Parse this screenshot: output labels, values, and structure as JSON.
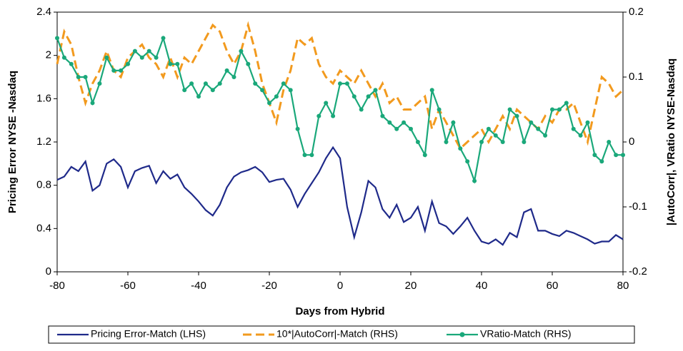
{
  "chart_data": {
    "type": "line",
    "x_label": "Days from Hybrid",
    "y_label": "Pricing Error NYSE -Nasdaq",
    "y2_label": "|AutoCorr|, VRatio NYSE-Nasdaq",
    "xlim": [
      -80,
      80
    ],
    "xticks": [
      -80,
      -60,
      -40,
      -20,
      0,
      20,
      40,
      60,
      80
    ],
    "ylim": [
      0,
      2.4
    ],
    "yticks": [
      0,
      0.4,
      0.8,
      1.2,
      1.6,
      2,
      2.4
    ],
    "y2lim": [
      -0.2,
      0.2
    ],
    "y2ticks": [
      -0.2,
      -0.1,
      0,
      0.1,
      0.2
    ],
    "x": [
      -80,
      -78,
      -76,
      -74,
      -72,
      -70,
      -68,
      -66,
      -64,
      -62,
      -60,
      -58,
      -56,
      -54,
      -52,
      -50,
      -48,
      -46,
      -44,
      -42,
      -40,
      -38,
      -36,
      -34,
      -32,
      -30,
      -28,
      -26,
      -24,
      -22,
      -20,
      -18,
      -16,
      -14,
      -12,
      -10,
      -8,
      -6,
      -4,
      -2,
      0,
      2,
      4,
      6,
      8,
      10,
      12,
      14,
      16,
      18,
      20,
      22,
      24,
      26,
      28,
      30,
      32,
      34,
      36,
      38,
      40,
      42,
      44,
      46,
      48,
      50,
      52,
      54,
      56,
      58,
      60,
      62,
      64,
      66,
      68,
      70,
      72,
      74,
      76,
      78,
      80
    ],
    "series": [
      {
        "name": "Pricing Error-Match (LHS)",
        "color": "#1f2a8a",
        "dashed": false,
        "markers": false,
        "values": [
          0.85,
          0.88,
          0.97,
          0.93,
          1.02,
          0.75,
          0.8,
          1.0,
          1.04,
          0.97,
          0.78,
          0.93,
          0.96,
          0.98,
          0.82,
          0.93,
          0.86,
          0.9,
          0.78,
          0.72,
          0.65,
          0.57,
          0.52,
          0.62,
          0.78,
          0.88,
          0.92,
          0.94,
          0.97,
          0.92,
          0.83,
          0.85,
          0.86,
          0.76,
          0.6,
          0.72,
          0.82,
          0.92,
          1.05,
          1.15,
          1.05,
          0.6,
          0.32,
          0.55,
          0.84,
          0.78,
          0.58,
          0.5,
          0.62,
          0.46,
          0.5,
          0.6,
          0.38,
          0.65,
          0.45,
          0.42,
          0.35,
          0.42,
          0.5,
          0.38,
          0.28,
          0.26,
          0.3,
          0.25,
          0.36,
          0.32,
          0.55,
          0.58,
          0.38,
          0.38,
          0.35,
          0.33,
          0.38,
          0.36,
          0.33,
          0.3,
          0.26,
          0.28,
          0.28,
          0.34,
          0.3
        ]
      },
      {
        "name": "10*|AutoCorr|-Match (RHS)",
        "color": "#f29a1e",
        "dashed": true,
        "markers": false,
        "axis": "y2",
        "values": [
          0.12,
          0.17,
          0.15,
          0.1,
          0.06,
          0.09,
          0.11,
          0.14,
          0.11,
          0.1,
          0.13,
          0.14,
          0.15,
          0.13,
          0.12,
          0.1,
          0.13,
          0.1,
          0.13,
          0.12,
          0.14,
          0.16,
          0.18,
          0.17,
          0.14,
          0.12,
          0.14,
          0.18,
          0.14,
          0.09,
          0.06,
          0.03,
          0.08,
          0.11,
          0.16,
          0.15,
          0.16,
          0.12,
          0.1,
          0.09,
          0.11,
          0.1,
          0.09,
          0.11,
          0.09,
          0.07,
          0.09,
          0.06,
          0.07,
          0.05,
          0.05,
          0.06,
          0.07,
          0.02,
          0.05,
          0.03,
          0.01,
          -0.01,
          0.0,
          0.01,
          0.02,
          0.0,
          0.02,
          0.04,
          0.02,
          0.05,
          0.04,
          0.03,
          0.02,
          0.04,
          0.03,
          0.05,
          0.05,
          0.06,
          0.03,
          0.0,
          0.05,
          0.1,
          0.09,
          0.07,
          0.08
        ]
      },
      {
        "name": "VRatio-Match (RHS)",
        "color": "#1aa87a",
        "dashed": false,
        "markers": true,
        "axis": "y2",
        "values": [
          0.16,
          0.13,
          0.12,
          0.1,
          0.1,
          0.06,
          0.09,
          0.13,
          0.11,
          0.11,
          0.12,
          0.14,
          0.13,
          0.14,
          0.13,
          0.16,
          0.12,
          0.12,
          0.08,
          0.09,
          0.07,
          0.09,
          0.08,
          0.09,
          0.11,
          0.1,
          0.14,
          0.12,
          0.09,
          0.08,
          0.06,
          0.07,
          0.09,
          0.08,
          0.02,
          -0.02,
          -0.02,
          0.04,
          0.06,
          0.04,
          0.09,
          0.09,
          0.07,
          0.05,
          0.07,
          0.08,
          0.04,
          0.03,
          0.02,
          0.03,
          0.02,
          0.0,
          -0.02,
          0.08,
          0.05,
          0.0,
          0.03,
          -0.01,
          -0.03,
          -0.06,
          0.0,
          0.02,
          0.01,
          0.0,
          0.05,
          0.04,
          0.0,
          0.03,
          0.02,
          0.01,
          0.05,
          0.05,
          0.06,
          0.02,
          0.01,
          0.03,
          -0.02,
          -0.03,
          0.0,
          -0.02,
          -0.02
        ]
      }
    ]
  }
}
